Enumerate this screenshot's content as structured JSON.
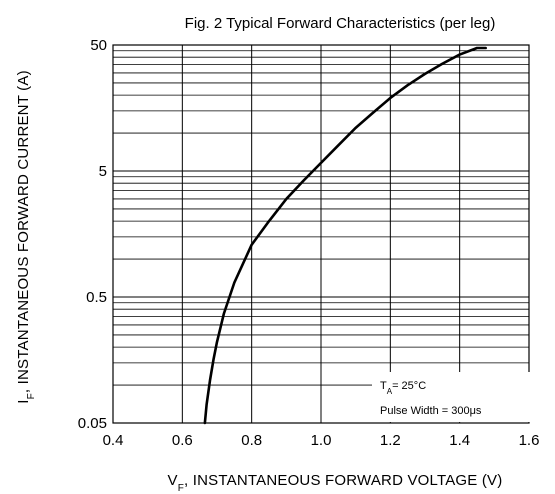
{
  "chart_data": {
    "type": "line",
    "title": "Fig. 2 Typical Forward Characteristics (per leg)",
    "xlabel": "V",
    "xlabel_subscript": "F",
    "xlabel_rest": ", INSTANTANEOUS FORWARD VOLTAGE (V)",
    "ylabel": "I",
    "ylabel_subscript": "F",
    "ylabel_rest": ", INSTANTANEOUS FORWARD CURRENT (A)",
    "x_ticks": [
      "0.4",
      "0.6",
      "0.8",
      "1.0",
      "1.2",
      "1.4",
      "1.6"
    ],
    "y_ticks": [
      "0.05",
      "0.5",
      "5",
      "50"
    ],
    "xlim": [
      0.4,
      1.6
    ],
    "ylim": [
      0.05,
      50
    ],
    "y_scale": "log",
    "grid": true,
    "annotation": {
      "line1_prefix": "T",
      "line1_subscript": "A",
      "line1_value": "= 25°C",
      "line2": "Pulse Width = 300μs",
      "placement": "bottom-right"
    },
    "series": [
      {
        "x": [
          0.665,
          0.67,
          0.68,
          0.69,
          0.7,
          0.72,
          0.75,
          0.8,
          0.85,
          0.9,
          0.95,
          1.0,
          1.05,
          1.1,
          1.15,
          1.2,
          1.25,
          1.3,
          1.35,
          1.4,
          1.45,
          1.475
        ],
        "y": [
          0.05,
          0.07,
          0.11,
          0.16,
          0.22,
          0.37,
          0.65,
          1.3,
          2.0,
          3.0,
          4.2,
          5.8,
          8.0,
          11.0,
          14.5,
          19.0,
          24.0,
          29.5,
          35.5,
          42.0,
          49.0,
          53.0
        ]
      }
    ]
  }
}
